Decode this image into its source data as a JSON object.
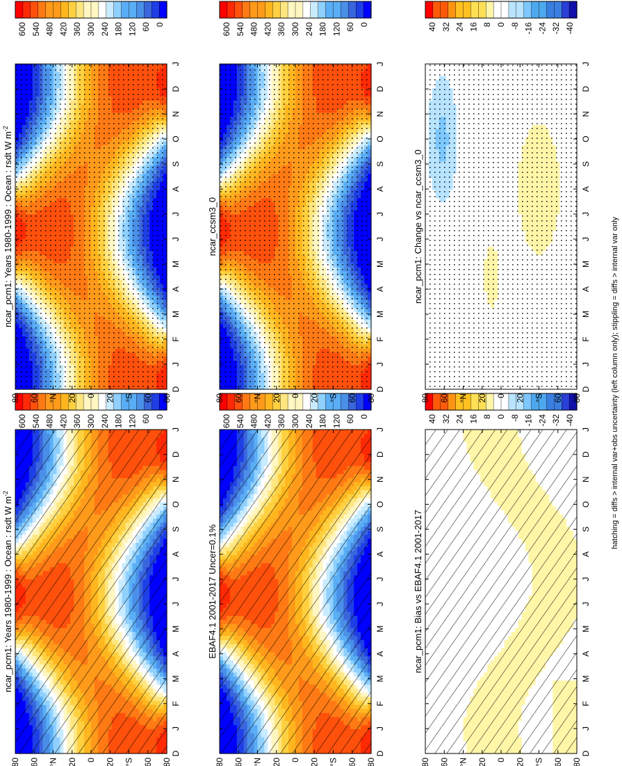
{
  "figure": {
    "footnote": "hatching = diffs > internal var+obs uncertainty (left column only); stippling = diffs > internal var only"
  },
  "chart_data": [
    {
      "id": "p1",
      "type": "heatmap",
      "title_main": "ncar_pcm1: Years 1980-1999 : Ocean : rsdt W m",
      "title_sup": "-2",
      "x": [
        "D",
        "J",
        "F",
        "M",
        "A",
        "M",
        "J",
        "J",
        "A",
        "S",
        "O",
        "N",
        "D",
        "J"
      ],
      "y": [
        "80",
        "60",
        "°N",
        "20",
        "0",
        "20",
        "°S",
        "60",
        "80"
      ],
      "zlim": [
        0,
        600
      ],
      "colorbar_ticks": [
        "600",
        "540",
        "480",
        "420",
        "360",
        "300",
        "240",
        "180",
        "120",
        "60",
        "0"
      ],
      "pattern": "hatch",
      "field": "insolation"
    },
    {
      "id": "p2",
      "type": "heatmap",
      "title_main": "ncar_pcm1: Years 1980-1999 : Ocean : rsdt W m",
      "title_sup": "-2",
      "x": [
        "D",
        "J",
        "F",
        "M",
        "A",
        "M",
        "J",
        "J",
        "A",
        "S",
        "O",
        "N",
        "D",
        "J"
      ],
      "y": [
        "80",
        "60",
        "°N",
        "20",
        "0",
        "20",
        "°S",
        "60",
        "80"
      ],
      "zlim": [
        0,
        600
      ],
      "colorbar_ticks": [
        "600",
        "540",
        "480",
        "420",
        "360",
        "300",
        "240",
        "180",
        "120",
        "60",
        "0"
      ],
      "pattern": "stipple",
      "field": "insolation"
    },
    {
      "id": "p3",
      "type": "heatmap",
      "title_main": "EBAF4.1 2001-2017 Uncer=0.1%",
      "title_sup": "",
      "x": [
        "D",
        "J",
        "F",
        "M",
        "A",
        "M",
        "J",
        "J",
        "A",
        "S",
        "O",
        "N",
        "D",
        "J"
      ],
      "y": [
        "80",
        "60",
        "°N",
        "20",
        "0",
        "20",
        "°S",
        "60",
        "80"
      ],
      "zlim": [
        0,
        600
      ],
      "colorbar_ticks": [
        "600",
        "540",
        "480",
        "420",
        "360",
        "300",
        "240",
        "180",
        "120",
        "60",
        "0"
      ],
      "pattern": "hatch",
      "field": "insolation"
    },
    {
      "id": "p4",
      "type": "heatmap",
      "title_main": "ncar_ccsm3_0",
      "title_sup": "",
      "x": [
        "D",
        "J",
        "F",
        "M",
        "A",
        "M",
        "J",
        "J",
        "A",
        "S",
        "O",
        "N",
        "D",
        "J"
      ],
      "y": [
        "80",
        "60",
        "°N",
        "20",
        "0",
        "20",
        "°S",
        "60",
        "80"
      ],
      "zlim": [
        0,
        600
      ],
      "colorbar_ticks": [
        "600",
        "540",
        "480",
        "420",
        "360",
        "300",
        "240",
        "180",
        "120",
        "60",
        "0"
      ],
      "pattern": "stipple",
      "field": "insolation"
    },
    {
      "id": "p5",
      "type": "heatmap",
      "title_main": "ncar_pcm1: Bias vs EBAF4.1 2001-2017",
      "title_sup": "",
      "x": [
        "D",
        "J",
        "F",
        "M",
        "A",
        "M",
        "J",
        "J",
        "A",
        "S",
        "O",
        "N",
        "D",
        "J"
      ],
      "y": [
        "80",
        "60",
        "°N",
        "20",
        "0",
        "20",
        "°S",
        "60",
        "80"
      ],
      "zlim": [
        -40,
        40
      ],
      "colorbar_ticks": [
        "40",
        "32",
        "24",
        "16",
        "8",
        "0",
        "-8",
        "-16",
        "-24",
        "-32",
        "-40"
      ],
      "pattern": "hatch",
      "field": "bias"
    },
    {
      "id": "p6",
      "type": "heatmap",
      "title_main": "ncar_pcm1: Change vs ncar_ccsm3_0",
      "title_sup": "",
      "x": [
        "D",
        "J",
        "F",
        "M",
        "A",
        "M",
        "J",
        "J",
        "A",
        "S",
        "O",
        "N",
        "D",
        "J"
      ],
      "y": [
        "80",
        "60",
        "°N",
        "20",
        "0",
        "20",
        "°S",
        "60",
        "80"
      ],
      "zlim": [
        -40,
        40
      ],
      "colorbar_ticks": [
        "40",
        "32",
        "24",
        "16",
        "8",
        "0",
        "-8",
        "-16",
        "-24",
        "-32",
        "-40"
      ],
      "pattern": "stipple",
      "field": "change"
    }
  ],
  "colors": {
    "insolation_scale": [
      "#0000ff",
      "#1f3fe6",
      "#3a66dd",
      "#4a8fe8",
      "#5aaef5",
      "#8fd0ff",
      "#c9ebff",
      "#ffffff",
      "#fff6c2",
      "#ffe680",
      "#ffd040",
      "#ffb61f",
      "#ff9a1a",
      "#ff7a14",
      "#ff500c",
      "#ff2a05",
      "#ff0000"
    ],
    "diff_scale": [
      "#1010aa",
      "#2a3fd6",
      "#3a7fe0",
      "#4ea8ee",
      "#7cc8ff",
      "#b8e4ff",
      "#ffffff",
      "#fff6a8",
      "#ffe055",
      "#ffc020",
      "#ff9414",
      "#ff5a0a",
      "#ff0000"
    ]
  }
}
